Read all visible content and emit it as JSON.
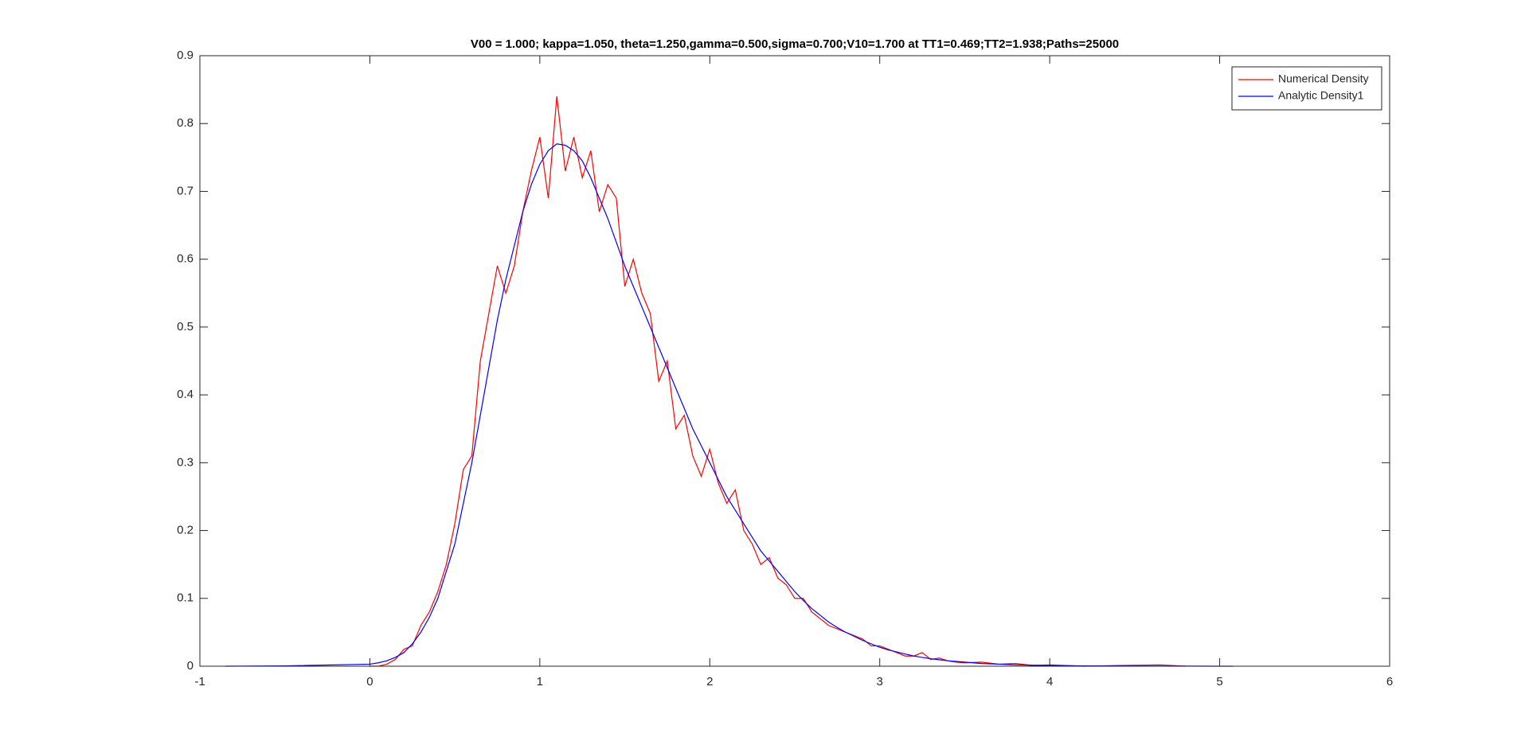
{
  "chart_data": {
    "type": "line",
    "title": "V00 = 1.000; kappa=1.050, theta=1.250,gamma=0.500,sigma=0.700;V10=1.700 at TT1=0.469;TT2=1.938;Paths=25000",
    "x": [
      -0.85,
      -0.5,
      0,
      0.05,
      0.1,
      0.15,
      0.2,
      0.25,
      0.3,
      0.35,
      0.4,
      0.45,
      0.5,
      0.55,
      0.6,
      0.65,
      0.7,
      0.75,
      0.8,
      0.85,
      0.9,
      0.95,
      1,
      1.05,
      1.1,
      1.15,
      1.2,
      1.25,
      1.3,
      1.35,
      1.4,
      1.45,
      1.5,
      1.55,
      1.6,
      1.65,
      1.7,
      1.75,
      1.8,
      1.85,
      1.9,
      1.95,
      2,
      2.05,
      2.1,
      2.15,
      2.2,
      2.25,
      2.3,
      2.35,
      2.4,
      2.45,
      2.5,
      2.55,
      2.6,
      2.65,
      2.7,
      2.75,
      2.8,
      2.85,
      2.9,
      2.95,
      3,
      3.05,
      3.1,
      3.15,
      3.2,
      3.25,
      3.3,
      3.35,
      3.4,
      3.45,
      3.5,
      3.6,
      3.7,
      3.8,
      3.9,
      4,
      4.2,
      4.4,
      4.65,
      4.8,
      5.08
    ],
    "series": [
      {
        "name": "Numerical Density",
        "color": "#ff0000",
        "values": [
          null,
          null,
          0,
          0,
          0.003,
          0.01,
          0.025,
          0.03,
          0.06,
          0.08,
          0.11,
          0.15,
          0.21,
          0.29,
          0.31,
          0.45,
          0.52,
          0.59,
          0.55,
          0.59,
          0.67,
          0.73,
          0.78,
          0.69,
          0.84,
          0.73,
          0.78,
          0.72,
          0.76,
          0.67,
          0.71,
          0.69,
          0.56,
          0.6,
          0.55,
          0.52,
          0.42,
          0.45,
          0.35,
          0.37,
          0.31,
          0.28,
          0.32,
          0.27,
          0.24,
          0.26,
          0.2,
          0.18,
          0.15,
          0.16,
          0.13,
          0.12,
          0.1,
          0.1,
          0.08,
          0.07,
          0.06,
          0.055,
          0.05,
          0.045,
          0.04,
          0.03,
          0.03,
          0.025,
          0.02,
          0.015,
          0.015,
          0.02,
          0.01,
          0.012,
          0.008,
          0.006,
          0.005,
          0.006,
          0.003,
          0.004,
          0.001,
          0.002,
          0,
          0.001,
          0.002,
          0,
          null
        ]
      },
      {
        "name": "Analytic Density1",
        "color": "#0000ff",
        "values": [
          0,
          0.0005,
          0.003,
          0.005,
          0.008,
          0.013,
          0.02,
          0.033,
          0.05,
          0.072,
          0.1,
          0.14,
          0.18,
          0.24,
          0.3,
          0.37,
          0.44,
          0.51,
          0.57,
          0.62,
          0.67,
          0.71,
          0.74,
          0.76,
          0.77,
          0.768,
          0.76,
          0.745,
          0.72,
          0.69,
          0.66,
          0.625,
          0.59,
          0.56,
          0.53,
          0.5,
          0.47,
          0.44,
          0.41,
          0.38,
          0.35,
          0.325,
          0.3,
          0.275,
          0.25,
          0.23,
          0.21,
          0.19,
          0.17,
          0.155,
          0.14,
          0.125,
          0.11,
          0.097,
          0.085,
          0.075,
          0.065,
          0.057,
          0.05,
          0.044,
          0.038,
          0.033,
          0.028,
          0.024,
          0.021,
          0.018,
          0.015,
          0.013,
          0.011,
          0.0095,
          0.008,
          0.007,
          0.006,
          0.004,
          0.003,
          0.002,
          0.0015,
          0.001,
          0.0005,
          0.0003,
          0.0001,
          0.0001,
          0
        ]
      }
    ],
    "xlim": [
      -1,
      6
    ],
    "xticks": [
      -1,
      0,
      1,
      2,
      3,
      4,
      5,
      6
    ],
    "ylim": [
      0,
      0.9
    ],
    "yticks": [
      0,
      0.1,
      0.2,
      0.3,
      0.4,
      0.5,
      0.6,
      0.7,
      0.8,
      0.9
    ],
    "legend": "top-right"
  }
}
